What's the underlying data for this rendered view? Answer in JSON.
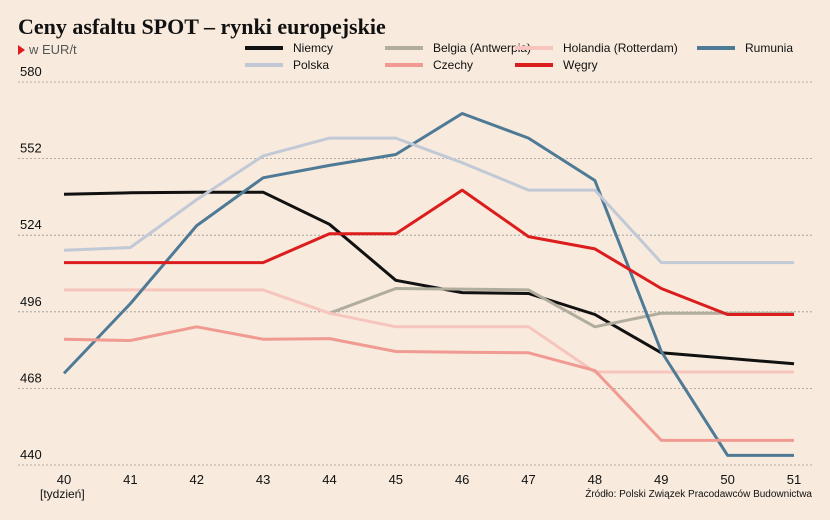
{
  "title": "Ceny asfaltu SPOT – rynki europejskie",
  "unit_label": "w EUR/t",
  "source": "Źródło: Polski Związek Pracodawców Budownictwa",
  "chart_data": {
    "type": "line",
    "title": "Ceny asfaltu SPOT – rynki europejskie",
    "ylabel": "w EUR/t",
    "xlabel": "[tydzień]",
    "x": [
      40,
      41,
      42,
      43,
      44,
      45,
      46,
      47,
      48,
      49,
      50,
      51
    ],
    "ylim": [
      440,
      580
    ],
    "yticks": [
      440,
      468,
      496,
      524,
      552,
      580
    ],
    "grid": "horizontal dashed",
    "legend_position": "top",
    "series": [
      {
        "name": "Niemcy",
        "color": "#111111",
        "points": [
          [
            40,
            539
          ],
          [
            41,
            539.5
          ],
          [
            42,
            539.7
          ],
          [
            43,
            539.7
          ],
          [
            44,
            528
          ],
          [
            45,
            507.5
          ],
          [
            46,
            503
          ],
          [
            47,
            502.7
          ],
          [
            48,
            495
          ],
          [
            49,
            481
          ],
          [
            50,
            479
          ],
          [
            51,
            477
          ]
        ]
      },
      {
        "name": "Belgia (Antwerpia)",
        "color": "#b0ad9f",
        "points": [
          [
            44,
            495.5
          ],
          [
            45,
            504.5
          ],
          [
            46,
            504.3
          ],
          [
            47,
            504
          ],
          [
            48,
            490.5
          ],
          [
            49,
            495.5
          ],
          [
            50,
            495.5
          ],
          [
            51,
            495.5
          ]
        ]
      },
      {
        "name": "Holandia (Rotterdam)",
        "color": "#f6c5bd",
        "points": [
          [
            40,
            504
          ],
          [
            41,
            504
          ],
          [
            42,
            504
          ],
          [
            43,
            504
          ],
          [
            44,
            495.5
          ],
          [
            45,
            490.5
          ],
          [
            46,
            490.5
          ],
          [
            47,
            490.5
          ],
          [
            48,
            474
          ],
          [
            49,
            474
          ],
          [
            50,
            474
          ],
          [
            51,
            474
          ]
        ]
      },
      {
        "name": "Rumunia",
        "color": "#4f7a96",
        "points": [
          [
            40,
            473.5
          ],
          [
            41,
            499
          ],
          [
            42,
            527.5
          ],
          [
            43,
            545
          ],
          [
            44,
            549.5
          ],
          [
            45,
            553.5
          ],
          [
            46,
            568.5
          ],
          [
            47,
            559.5
          ],
          [
            48,
            544
          ],
          [
            49,
            481.5
          ],
          [
            50,
            443.5
          ],
          [
            51,
            443.5
          ]
        ]
      },
      {
        "name": "Polska",
        "color": "#c2c9d6",
        "points": [
          [
            40,
            518.5
          ],
          [
            41,
            519.5
          ],
          [
            42,
            537
          ],
          [
            43,
            553
          ],
          [
            44,
            559.5
          ],
          [
            45,
            559.5
          ],
          [
            46,
            550.5
          ],
          [
            47,
            540.5
          ],
          [
            48,
            540.5
          ],
          [
            49,
            514
          ],
          [
            50,
            514
          ],
          [
            51,
            514
          ]
        ]
      },
      {
        "name": "Czechy",
        "color": "#f09a92",
        "points": [
          [
            40,
            486
          ],
          [
            41,
            485.5
          ],
          [
            42,
            490.5
          ],
          [
            43,
            486
          ],
          [
            44,
            486.2
          ],
          [
            45,
            481.5
          ],
          [
            46,
            481.2
          ],
          [
            47,
            481
          ],
          [
            48,
            474.5
          ],
          [
            49,
            449
          ],
          [
            50,
            449
          ],
          [
            51,
            449
          ]
        ]
      },
      {
        "name": "Węgry",
        "color": "#dc1d1d",
        "points": [
          [
            40,
            514
          ],
          [
            41,
            514
          ],
          [
            42,
            514
          ],
          [
            43,
            514
          ],
          [
            44,
            524.5
          ],
          [
            45,
            524.5
          ],
          [
            46,
            540.5
          ],
          [
            47,
            523.5
          ],
          [
            48,
            519
          ],
          [
            49,
            504.5
          ],
          [
            50,
            495
          ],
          [
            51,
            495
          ]
        ]
      }
    ]
  }
}
